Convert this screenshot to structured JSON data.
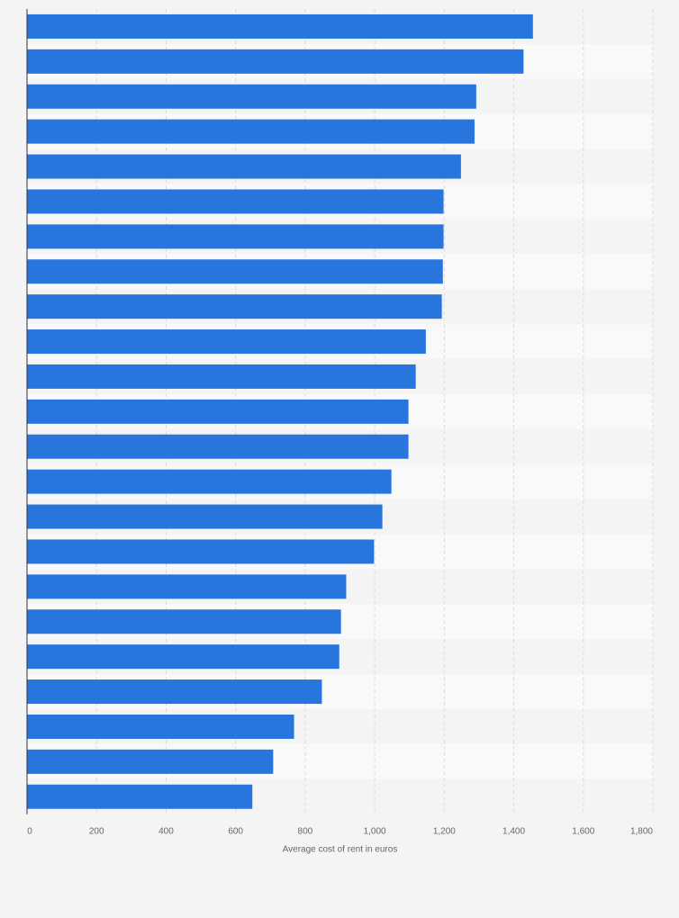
{
  "chart_data": {
    "type": "bar",
    "orientation": "horizontal",
    "title": "",
    "xlabel": "Average cost of rent in euros",
    "ylabel": "",
    "xlim": [
      0,
      1800
    ],
    "x_ticks": [
      0,
      200,
      400,
      600,
      800,
      1000,
      1200,
      1400,
      1600,
      1800
    ],
    "x_tick_labels": [
      "0",
      "200",
      "400",
      "600",
      "800",
      "1,000",
      "1,200",
      "1,400",
      "1,600",
      "1,800"
    ],
    "grid": true,
    "legend": "none",
    "category_labels_visible": false,
    "bar_color": "#2876dd",
    "values": [
      1455,
      1428,
      1292,
      1287,
      1248,
      1198,
      1198,
      1196,
      1193,
      1147,
      1118,
      1097,
      1097,
      1048,
      1022,
      998,
      918,
      903,
      898,
      848,
      768,
      708,
      648
    ]
  }
}
